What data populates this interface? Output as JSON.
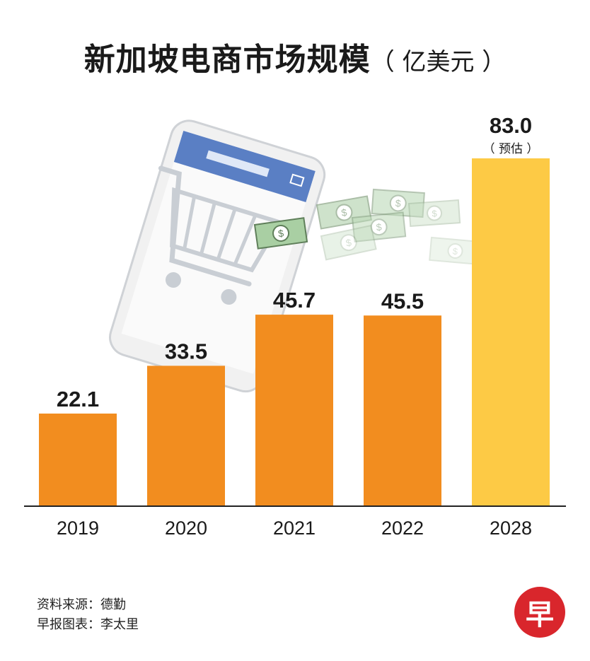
{
  "title": "新加坡电商市场规模",
  "unit": "（ 亿美元 ）",
  "estimate_note": "（ 预估 ）",
  "colors": {
    "bar": "#f28d1f",
    "estimate_bar": "#fdca45",
    "axis": "#222222"
  },
  "source_lines": [
    "资料来源：德勤",
    "早报图表：李太里"
  ],
  "logo_text": "早",
  "chart_data": {
    "type": "bar",
    "title": "新加坡电商市场规模",
    "ylabel": "",
    "xlabel": "",
    "categories": [
      "2019",
      "2020",
      "2021",
      "2022",
      "2028"
    ],
    "values": [
      22.1,
      33.5,
      45.7,
      45.5,
      83.0
    ],
    "value_labels": [
      "22.1",
      "33.5",
      "45.7",
      "45.5",
      "83.0"
    ],
    "estimated": [
      false,
      false,
      false,
      false,
      true
    ],
    "ylim": [
      0,
      83
    ],
    "grid": false,
    "legend": "none"
  }
}
